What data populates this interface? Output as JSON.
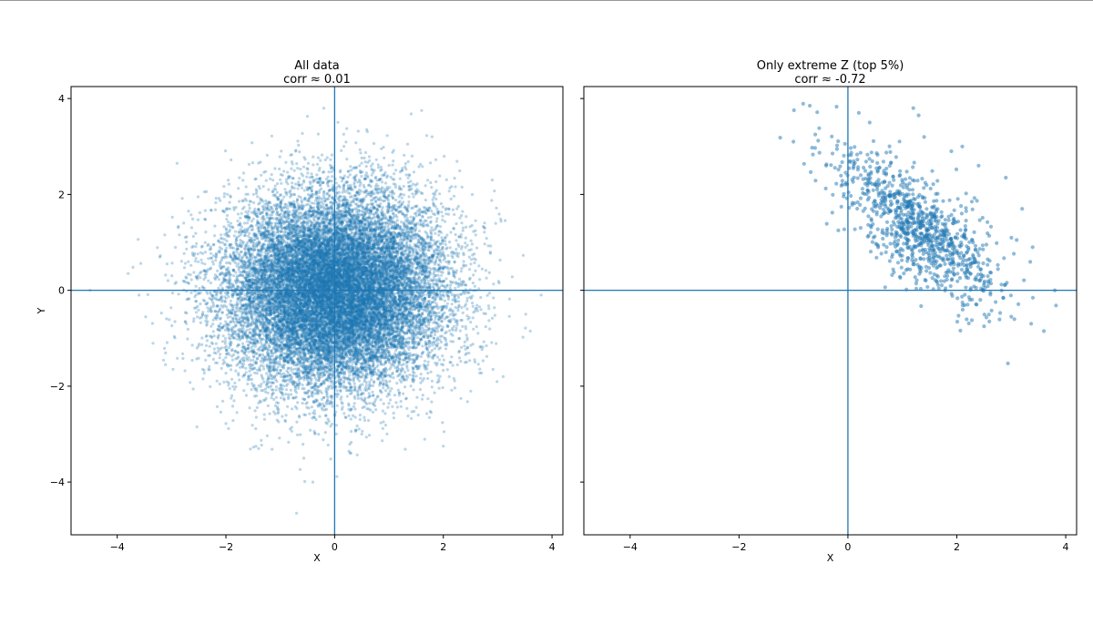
{
  "chart_data": [
    {
      "type": "scatter",
      "title": "All data",
      "subtitle": "corr ≈ 0.01",
      "xlabel": "X",
      "ylabel": "Y",
      "xlim": [
        -4.85,
        4.2
      ],
      "ylim": [
        -5.1,
        4.25
      ],
      "xticks": [
        -4,
        -2,
        0,
        2,
        4
      ],
      "yticks": [
        -4,
        -2,
        0,
        2,
        4
      ],
      "xtick_labels": [
        "−4",
        "−2",
        "0",
        "2",
        "4"
      ],
      "ytick_labels": [
        "−4",
        "−2",
        "0",
        "2",
        "4"
      ],
      "reference_lines": {
        "x": 0,
        "y": 0
      },
      "grid": false,
      "color": "#1f77b4",
      "marker_alpha": 0.3,
      "distribution": {
        "x_mean": 0.0,
        "x_sd": 1.0,
        "y_mean": 0.0,
        "y_sd": 1.0,
        "correlation": 0.01,
        "count": 20000
      },
      "series": [
        {
          "x": [
            -4.5,
            -3.8,
            -3.6,
            3.8,
            3.6,
            -0.7,
            3.1,
            -0.2,
            1.6,
            -1.4,
            2.0,
            0.3,
            -2.9,
            2.9,
            0.5,
            -0.4
          ],
          "y": [
            0.0,
            0.35,
            -0.1,
            -0.1,
            -0.85,
            -4.65,
            -1.8,
            3.8,
            3.75,
            -3.3,
            -3.25,
            -3.4,
            2.65,
            2.3,
            -3.0,
            -4.0
          ]
        }
      ]
    },
    {
      "type": "scatter",
      "title": "Only extreme Z (top 5%)",
      "subtitle": "corr ≈ -0.72",
      "xlabel": "X",
      "ylabel": "",
      "xlim": [
        -4.85,
        4.2
      ],
      "ylim": [
        -5.1,
        4.25
      ],
      "xticks": [
        -4,
        -2,
        0,
        2,
        4
      ],
      "yticks": [
        -4,
        -2,
        0,
        2,
        4
      ],
      "xtick_labels": [
        "−4",
        "−2",
        "0",
        "2",
        "4"
      ],
      "ytick_labels": [],
      "reference_lines": {
        "x": 0,
        "y": 0
      },
      "grid": false,
      "color": "#1f77b4",
      "marker_alpha": 0.5,
      "distribution": {
        "x_mean": 1.3,
        "x_sd": 0.75,
        "y_mean": 1.3,
        "y_sd": 0.8,
        "correlation": -0.72,
        "count": 1000
      },
      "series": [
        {
          "x": [
            -0.7,
            -1.0,
            -0.6,
            1.2,
            1.3,
            3.6,
            2.5,
            3.0,
            2.9,
            3.2,
            3.8,
            0.2,
            2.1,
            2.4,
            0.4,
            3.1,
            2.2,
            1.4,
            -0.4,
            1.9
          ],
          "y": [
            3.85,
            3.1,
            3.25,
            3.8,
            3.65,
            -0.85,
            -0.75,
            -0.55,
            2.35,
            1.7,
            0.0,
            3.7,
            3.0,
            2.6,
            3.5,
            1.05,
            -0.3,
            3.2,
            2.6,
            2.9
          ]
        }
      ]
    }
  ]
}
